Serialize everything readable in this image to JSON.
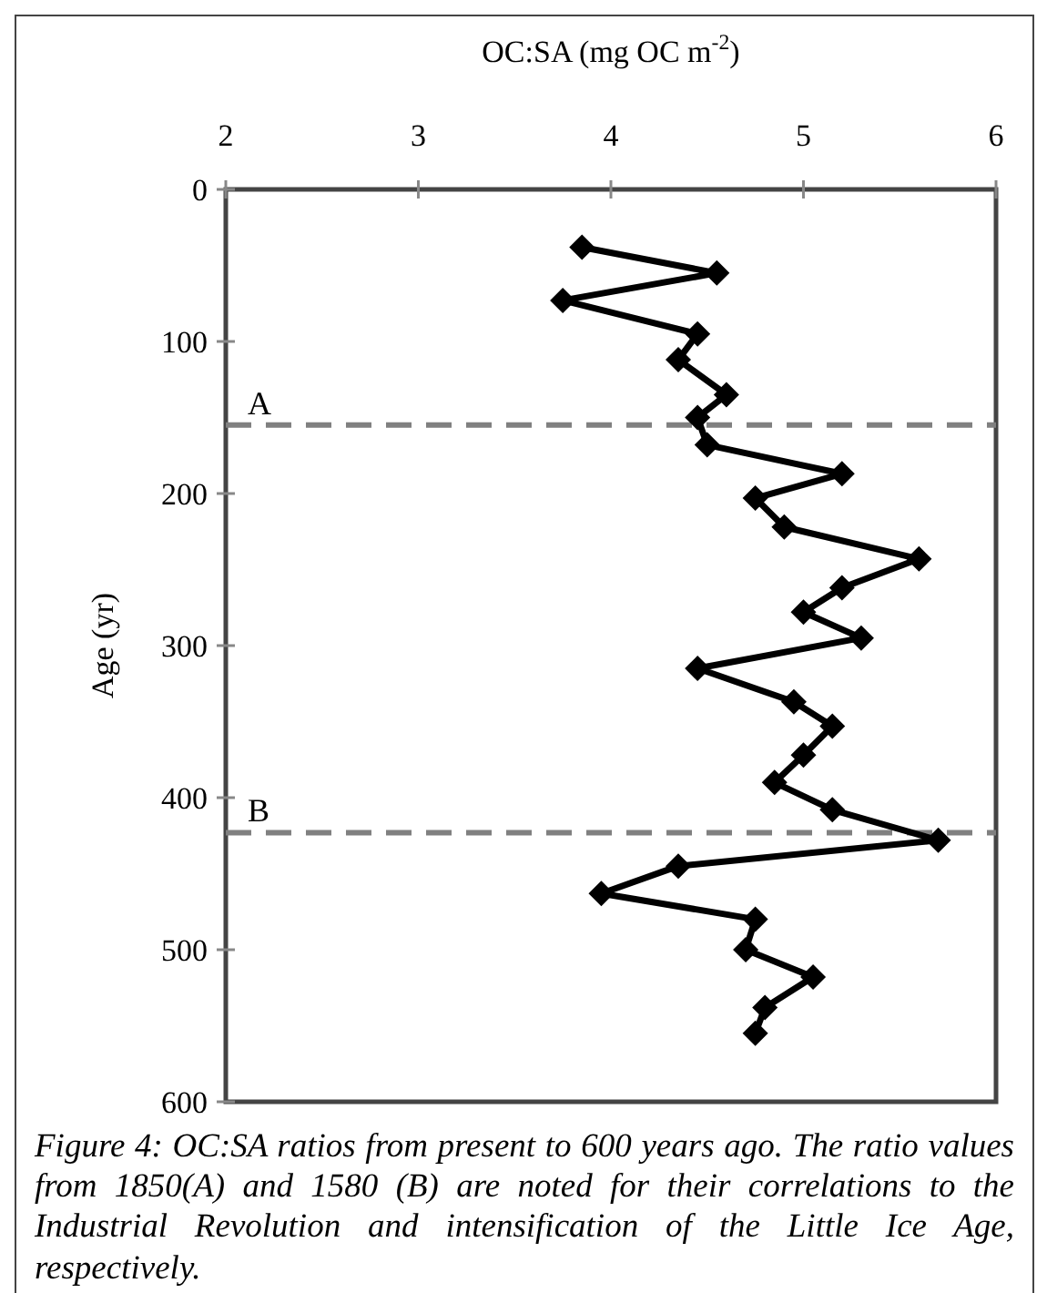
{
  "chart_data": {
    "type": "line",
    "xlabel": "OC:SA (mg OC m$^{-2}$)",
    "ylabel": "Age (yr)",
    "series": [
      {
        "color": "#000000",
        "x": [
          3.85,
          4.55,
          3.75,
          4.45,
          4.35,
          4.6,
          4.45,
          4.5,
          5.2,
          4.75,
          4.9,
          5.6,
          5.2,
          5.0,
          5.3,
          4.45,
          4.95,
          5.15,
          5.0,
          4.85,
          5.15,
          5.7,
          4.35,
          3.95,
          4.75,
          4.7,
          5.05,
          4.8,
          4.75
        ],
        "values": [
          38,
          55,
          73,
          95,
          112,
          135,
          150,
          168,
          187,
          203,
          222,
          243,
          262,
          278,
          295,
          315,
          337,
          353,
          372,
          390,
          408,
          428,
          445,
          463,
          480,
          500,
          518,
          538,
          555
        ]
      }
    ],
    "xlim": [
      2,
      6
    ],
    "xticks": [
      2,
      3,
      4,
      5,
      6
    ],
    "ylim": [
      600,
      0
    ],
    "yticks": [
      0,
      100,
      200,
      300,
      400,
      500,
      600
    ],
    "marker": "diamond",
    "line_style": "solid",
    "grid": false,
    "ref_lines": [
      {
        "axis": "y",
        "value": 155,
        "label": "A",
        "color": "#808080",
        "line_style": "dashed"
      },
      {
        "axis": "y",
        "value": 423,
        "label": "B",
        "color": "#808080",
        "line_style": "dashed"
      }
    ],
    "annotations": [
      "Figure 4: OC:SA ratios from present to 600 years ago. The ratio values from 1850(A) and 1580 (B) are noted for their correlations to the Industrial Revolution and intensification of the Little Ice Age, respectively."
    ]
  }
}
